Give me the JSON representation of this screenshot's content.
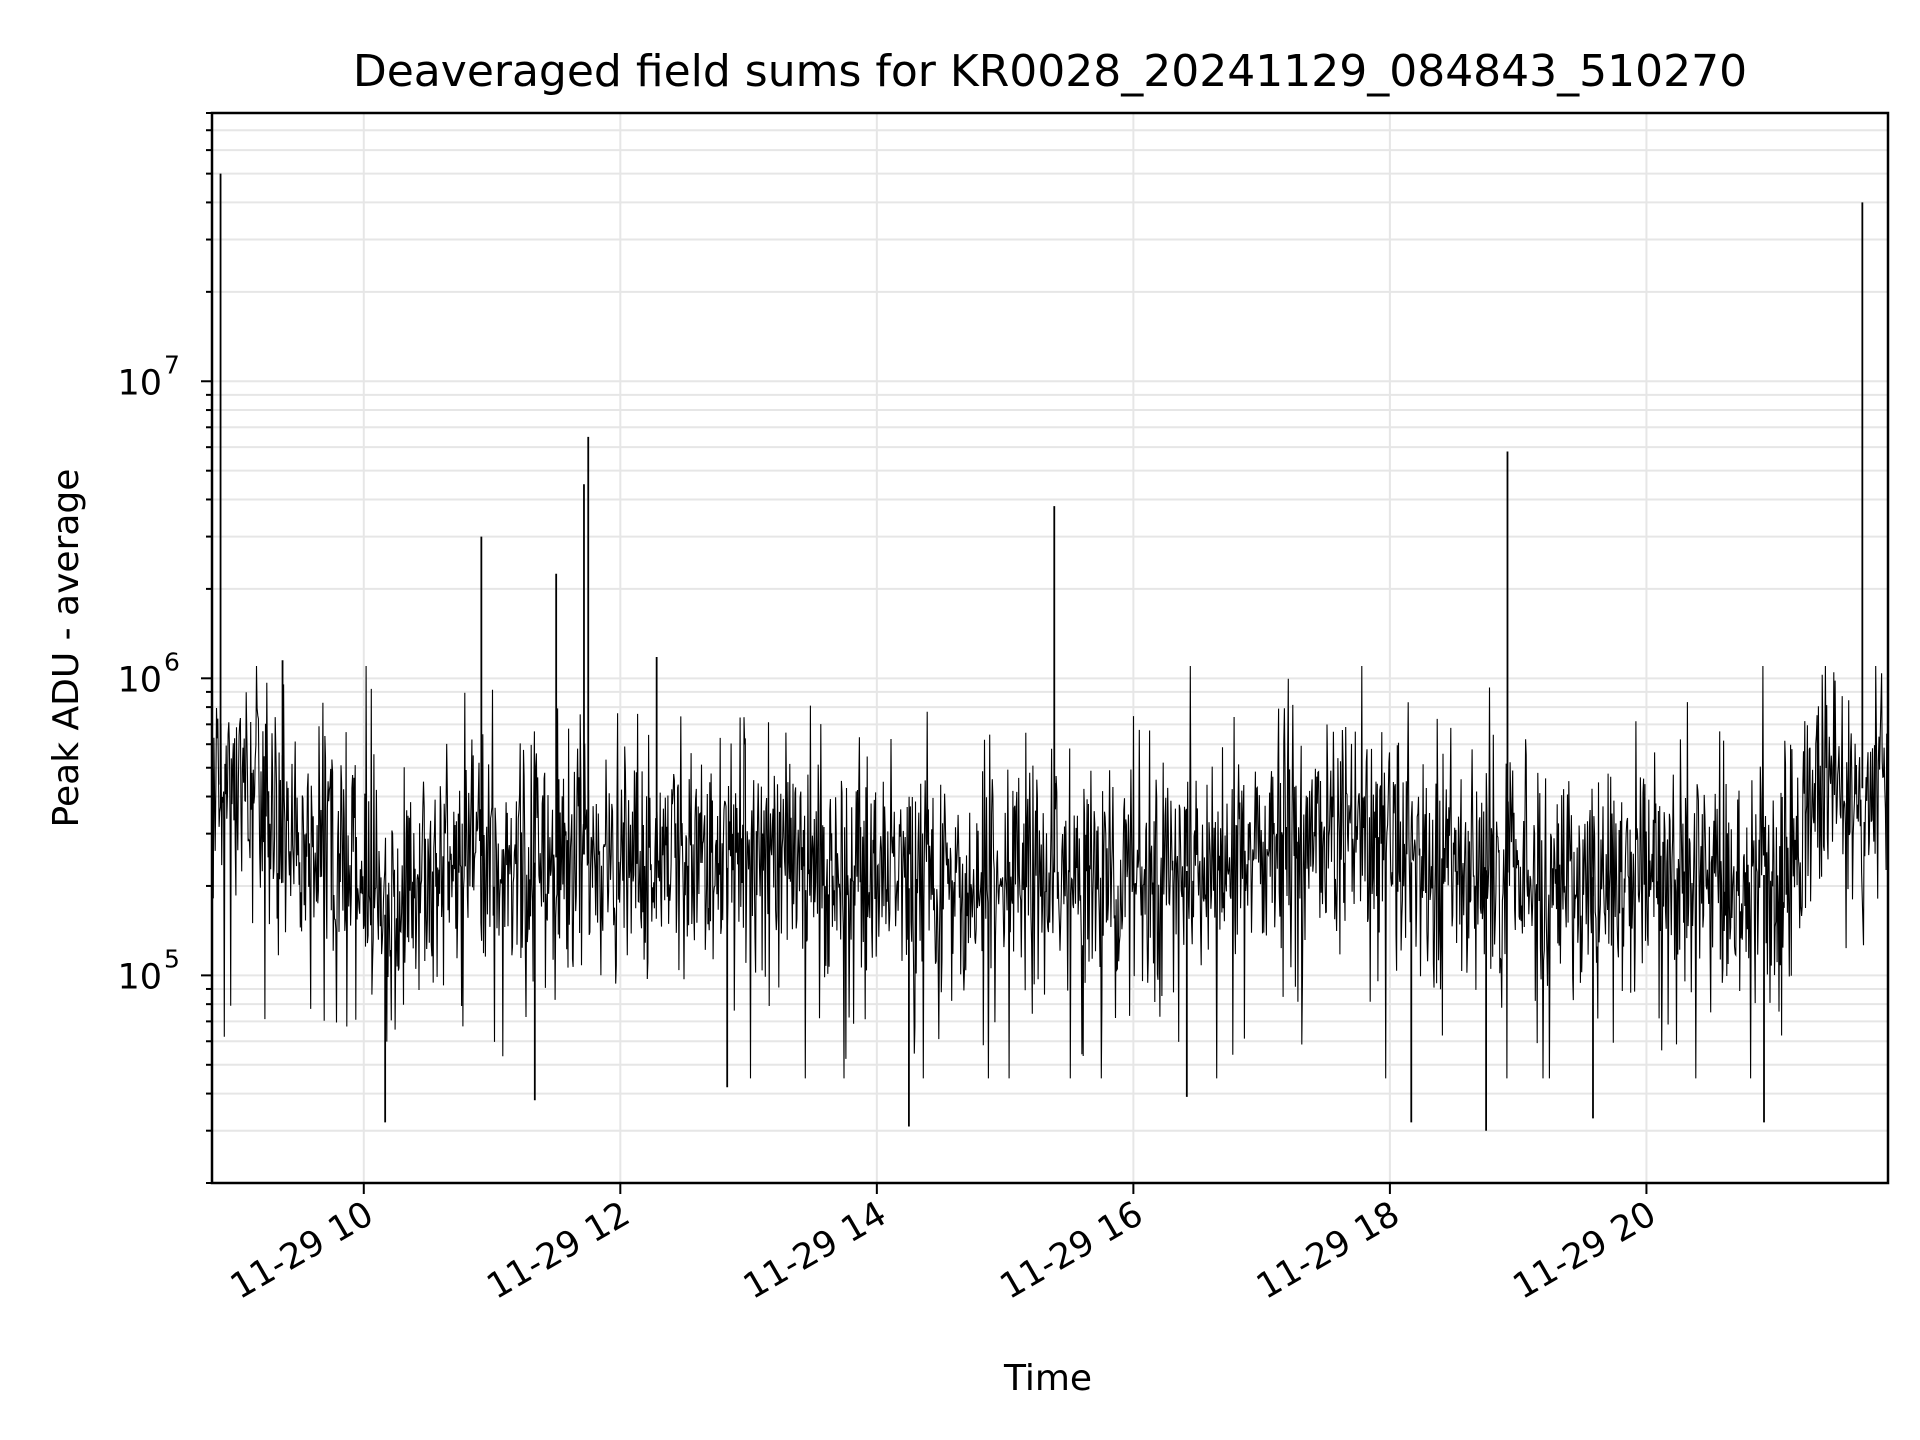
{
  "chart_data": {
    "type": "line",
    "title": "Deaveraged field sums for KR0028_20241129_084843_510270",
    "xlabel": "Time",
    "ylabel": "Peak ADU - average",
    "yscale": "log",
    "xlim": [
      "2024-11-29 08:49",
      "2024-11-29 21:53"
    ],
    "ylim": [
      20000,
      80000000
    ],
    "x_ticks": [
      {
        "value": "2024-11-29 10:00",
        "label": "11-29 10"
      },
      {
        "value": "2024-11-29 12:00",
        "label": "11-29 12"
      },
      {
        "value": "2024-11-29 14:00",
        "label": "11-29 14"
      },
      {
        "value": "2024-11-29 16:00",
        "label": "11-29 16"
      },
      {
        "value": "2024-11-29 18:00",
        "label": "11-29 18"
      },
      {
        "value": "2024-11-29 20:00",
        "label": "11-29 20"
      }
    ],
    "y_ticks": [
      {
        "value": 100000,
        "base": "10",
        "exp": "5"
      },
      {
        "value": 1000000,
        "base": "10",
        "exp": "6"
      },
      {
        "value": 10000000,
        "base": "10",
        "exp": "7"
      }
    ],
    "grid": true,
    "line_color": "#000000",
    "baseline": [
      [
        "2024-11-29 08:49",
        450000
      ],
      [
        "2024-11-29 09:15",
        380000
      ],
      [
        "2024-11-29 09:30",
        280000
      ],
      [
        "2024-11-29 09:45",
        300000
      ],
      [
        "2024-11-29 10:10",
        160000
      ],
      [
        "2024-11-29 10:30",
        200000
      ],
      [
        "2024-11-29 10:50",
        260000
      ],
      [
        "2024-11-29 11:10",
        230000
      ],
      [
        "2024-11-29 11:40",
        260000
      ],
      [
        "2024-11-29 12:00",
        230000
      ],
      [
        "2024-11-29 12:30",
        260000
      ],
      [
        "2024-11-29 12:50",
        230000
      ],
      [
        "2024-11-29 13:10",
        300000
      ],
      [
        "2024-11-29 13:40",
        220000
      ],
      [
        "2024-11-29 14:10",
        200000
      ],
      [
        "2024-11-29 14:40",
        180000
      ],
      [
        "2024-11-29 15:30",
        230000
      ],
      [
        "2024-11-29 16:20",
        220000
      ],
      [
        "2024-11-29 17:00",
        260000
      ],
      [
        "2024-11-29 17:40",
        300000
      ],
      [
        "2024-11-29 18:10",
        240000
      ],
      [
        "2024-11-29 19:00",
        220000
      ],
      [
        "2024-11-29 20:00",
        210000
      ],
      [
        "2024-11-29 21:10",
        220000
      ],
      [
        "2024-11-29 21:20",
        420000
      ],
      [
        "2024-11-29 21:53",
        430000
      ]
    ],
    "spikes": [
      {
        "x": "2024-11-29 08:53",
        "y": 50000000
      },
      {
        "x": "2024-11-29 09:22",
        "y": 1150000
      },
      {
        "x": "2024-11-29 10:55",
        "y": 3000000
      },
      {
        "x": "2024-11-29 11:30",
        "y": 2250000
      },
      {
        "x": "2024-11-29 11:43",
        "y": 4500000
      },
      {
        "x": "2024-11-29 11:45",
        "y": 6500000
      },
      {
        "x": "2024-11-29 12:17",
        "y": 1180000
      },
      {
        "x": "2024-11-29 15:23",
        "y": 3800000
      },
      {
        "x": "2024-11-29 18:55",
        "y": 5800000
      },
      {
        "x": "2024-11-29 21:41",
        "y": 40000000
      }
    ],
    "dips": [
      {
        "x": "2024-11-29 10:10",
        "y": 32000
      },
      {
        "x": "2024-11-29 11:20",
        "y": 38000
      },
      {
        "x": "2024-11-29 12:50",
        "y": 42000
      },
      {
        "x": "2024-11-29 14:15",
        "y": 31000
      },
      {
        "x": "2024-11-29 16:25",
        "y": 39000
      },
      {
        "x": "2024-11-29 18:10",
        "y": 32000
      },
      {
        "x": "2024-11-29 18:45",
        "y": 30000
      },
      {
        "x": "2024-11-29 19:35",
        "y": 33000
      },
      {
        "x": "2024-11-29 20:55",
        "y": 32000
      }
    ]
  }
}
